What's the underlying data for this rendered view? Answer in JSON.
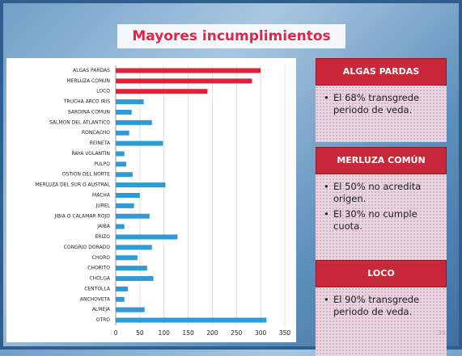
{
  "chart_data": {
    "type": "bar",
    "orientation": "horizontal",
    "title": "Mayores incumplimientos",
    "categories": [
      "ALGAS PARDAS",
      "MERLUZA COMUN",
      "LOCO",
      "TRUCHA ARCO IRIS",
      "SARDINA COMUN",
      "SALMON DEL ATLANTICO",
      "RONCACHO",
      "REINETA",
      "RAYA VOLANTIN",
      "PULPO",
      "OSTION DEL NORTE",
      "MERLUZA DEL SUR O AUSTRAL",
      "MACHA",
      "JUREL",
      "JIBIA O CALAMAR ROJO",
      "JAIBA",
      "ERIZO",
      "CONGRIO DORADO",
      "CHORO",
      "CHORITO",
      "CHOLGA",
      "CENTOLLA",
      "ANCHOVETA",
      "ALMEJA",
      "OTRO"
    ],
    "values": [
      300,
      282,
      190,
      58,
      33,
      75,
      28,
      98,
      18,
      22,
      35,
      103,
      50,
      38,
      70,
      18,
      128,
      75,
      45,
      65,
      78,
      25,
      18,
      60,
      312
    ],
    "colors": [
      "#e3223a",
      "#e3223a",
      "#e3223a",
      "#2e9ad6",
      "#2e9ad6",
      "#2e9ad6",
      "#2e9ad6",
      "#2e9ad6",
      "#2e9ad6",
      "#2e9ad6",
      "#2e9ad6",
      "#2e9ad6",
      "#2e9ad6",
      "#2e9ad6",
      "#2e9ad6",
      "#2e9ad6",
      "#2e9ad6",
      "#2e9ad6",
      "#2e9ad6",
      "#2e9ad6",
      "#2e9ad6",
      "#2e9ad6",
      "#2e9ad6",
      "#2e9ad6",
      "#2e9ad6"
    ],
    "xlim": [
      0,
      350
    ],
    "xticks": [
      0,
      50,
      100,
      150,
      200,
      250,
      300,
      350
    ],
    "grid": true
  },
  "panels": [
    {
      "title": "ALGAS PARDAS",
      "bullets": [
        "El 68% transgrede periodo de veda."
      ]
    },
    {
      "title": "MERLUZA COMÚN",
      "bullets": [
        "El 50% no acredita origen.",
        "El 30% no cumple cuota."
      ]
    },
    {
      "title": "LOCO",
      "bullets": [
        "El 90% transgrede periodo de veda."
      ]
    }
  ],
  "slide_number": "39"
}
